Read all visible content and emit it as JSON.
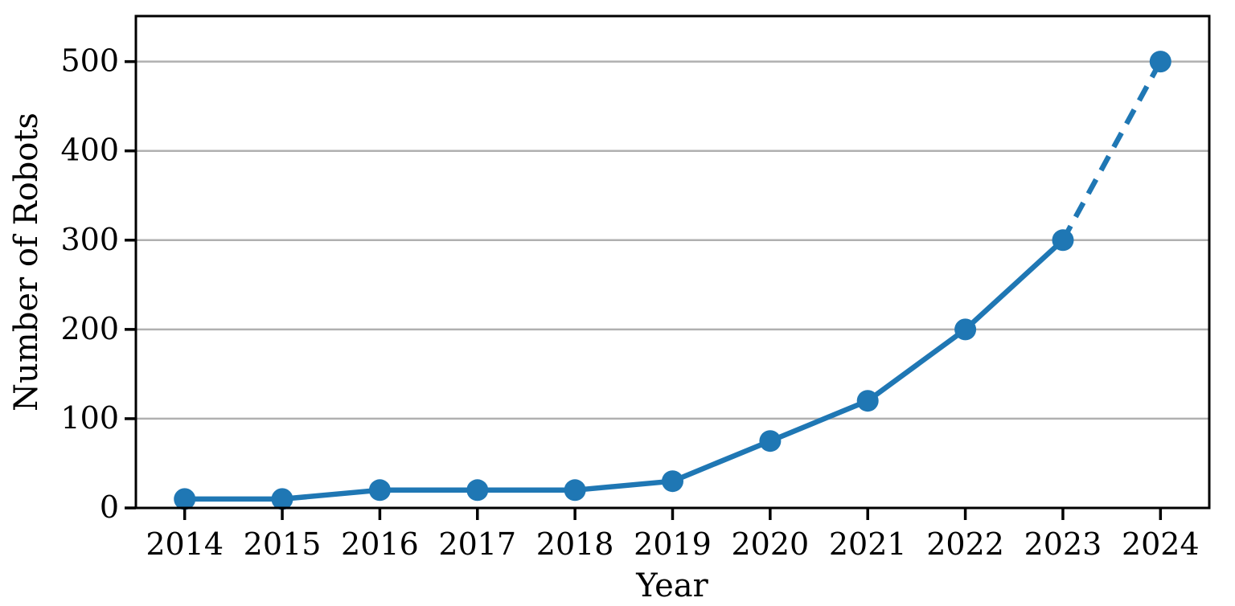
{
  "chart_data": {
    "type": "line",
    "title": "",
    "xlabel": "Year",
    "ylabel": "Number of Robots",
    "x": [
      2014,
      2015,
      2016,
      2017,
      2018,
      2019,
      2020,
      2021,
      2022,
      2023,
      2024
    ],
    "series": [
      {
        "name": "Number of Robots",
        "values": [
          10,
          10,
          20,
          20,
          20,
          30,
          75,
          120,
          200,
          300,
          500
        ],
        "color": "#1f77b4",
        "marker": "circle",
        "segments": [
          {
            "from_index": 0,
            "to_index": 9,
            "style": "solid"
          },
          {
            "from_index": 9,
            "to_index": 10,
            "style": "dashed"
          }
        ]
      }
    ],
    "xticks": [
      2014,
      2015,
      2016,
      2017,
      2018,
      2019,
      2020,
      2021,
      2022,
      2023,
      2024
    ],
    "yticks": [
      0,
      100,
      200,
      300,
      400,
      500
    ],
    "xlim": [
      2013.5,
      2024.5
    ],
    "ylim": [
      0,
      551
    ],
    "grid": "horizontal",
    "legend": "none",
    "colors": {
      "line": "#1f77b4",
      "grid": "#b0b0b0",
      "axis": "#000000",
      "background": "#ffffff"
    }
  }
}
